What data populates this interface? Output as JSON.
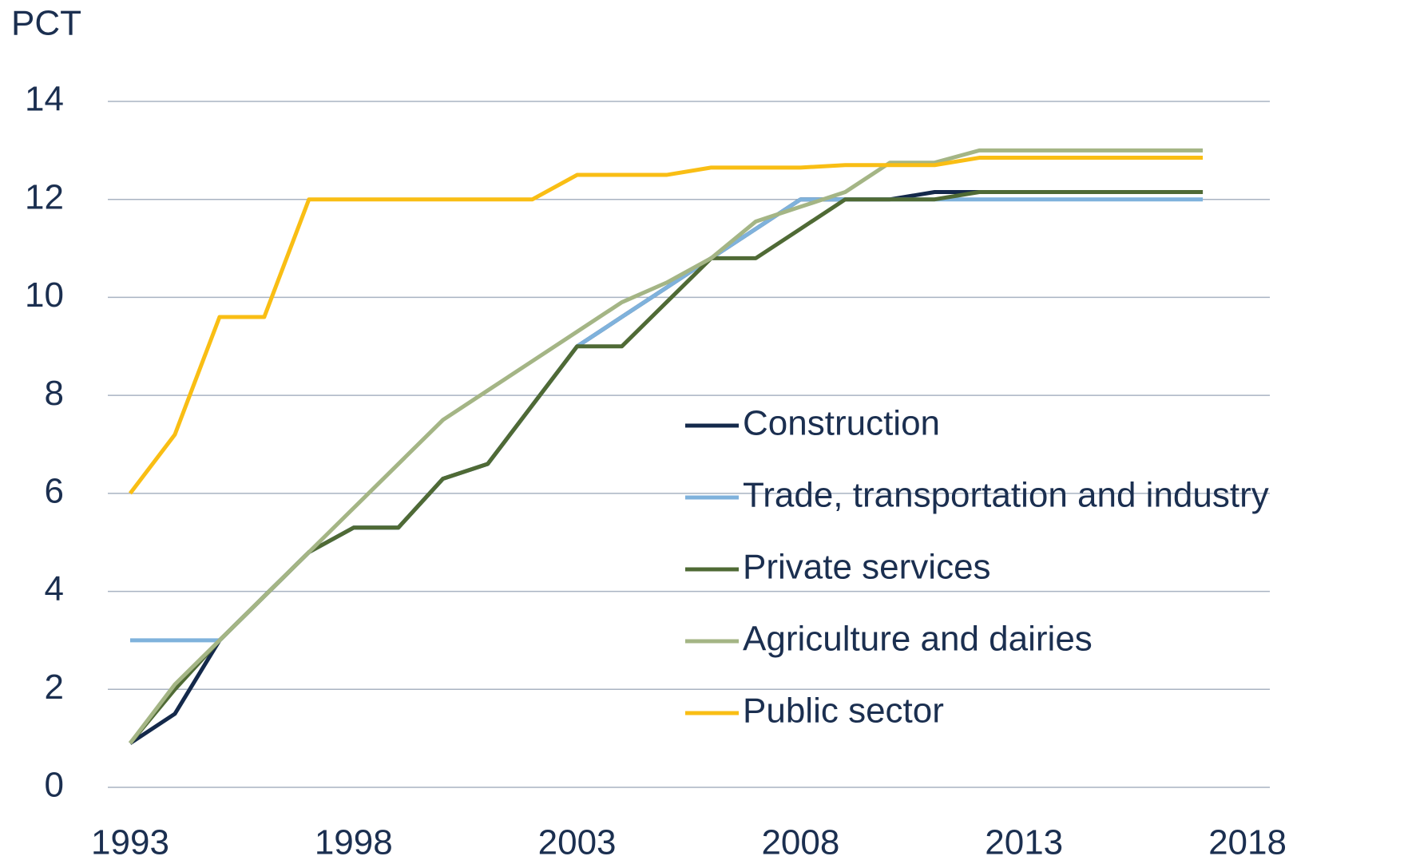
{
  "chart_data": {
    "type": "line",
    "y_label": "PCT",
    "x": [
      1993,
      1994,
      1995,
      1996,
      1997,
      1998,
      1999,
      2000,
      2001,
      2002,
      2003,
      2004,
      2005,
      2006,
      2007,
      2008,
      2009,
      2010,
      2011,
      2012,
      2013,
      2014,
      2015,
      2016,
      2017
    ],
    "series": [
      {
        "name": "Construction",
        "color": "#14294b",
        "values": [
          0.9,
          1.5,
          3.0,
          3.9,
          4.8,
          5.3,
          5.3,
          6.3,
          6.6,
          7.8,
          9.0,
          9.6,
          10.2,
          10.8,
          11.4,
          12.0,
          12.0,
          12.0,
          12.15,
          12.15,
          12.15,
          12.15,
          12.15,
          12.15,
          12.15
        ]
      },
      {
        "name": "Trade, transportation and industry",
        "color": "#7fb2dc",
        "values": [
          3.0,
          3.0,
          3.0,
          3.9,
          4.8,
          5.3,
          5.3,
          6.3,
          6.6,
          7.8,
          9.0,
          9.6,
          10.2,
          10.8,
          11.4,
          12.0,
          12.0,
          12.0,
          12.0,
          12.0,
          12.0,
          12.0,
          12.0,
          12.0,
          12.0
        ]
      },
      {
        "name": "Private services",
        "color": "#4f6a35",
        "values": [
          0.9,
          2.0,
          3.0,
          3.9,
          4.8,
          5.3,
          5.3,
          6.3,
          6.6,
          7.8,
          9.0,
          9.0,
          9.9,
          10.8,
          10.8,
          11.4,
          12.0,
          12.0,
          12.0,
          12.15,
          12.15,
          12.15,
          12.15,
          12.15,
          12.15
        ]
      },
      {
        "name": "Agriculture and dairies",
        "color": "#a4b585",
        "values": [
          0.9,
          2.1,
          3.0,
          3.9,
          4.8,
          5.7,
          6.6,
          7.5,
          8.1,
          8.7,
          9.3,
          9.9,
          10.3,
          10.8,
          11.55,
          11.85,
          12.15,
          12.75,
          12.75,
          13.0,
          13.0,
          13.0,
          13.0,
          13.0,
          13.0
        ]
      },
      {
        "name": "Public sector",
        "color": "#f9be14",
        "values": [
          6.0,
          7.2,
          9.6,
          9.6,
          12.0,
          12.0,
          12.0,
          12.0,
          12.0,
          12.0,
          12.5,
          12.5,
          12.5,
          12.65,
          12.65,
          12.65,
          12.7,
          12.7,
          12.7,
          12.85,
          12.85,
          12.85,
          12.85,
          12.85,
          12.85
        ]
      }
    ],
    "xlim": [
      1992.5,
      2018.5
    ],
    "xticks": [
      1993,
      1998,
      2003,
      2008,
      2013,
      2018
    ],
    "ylim": [
      0,
      14
    ],
    "yticks": [
      0,
      2,
      4,
      6,
      8,
      10,
      12,
      14
    ],
    "grid": true
  }
}
